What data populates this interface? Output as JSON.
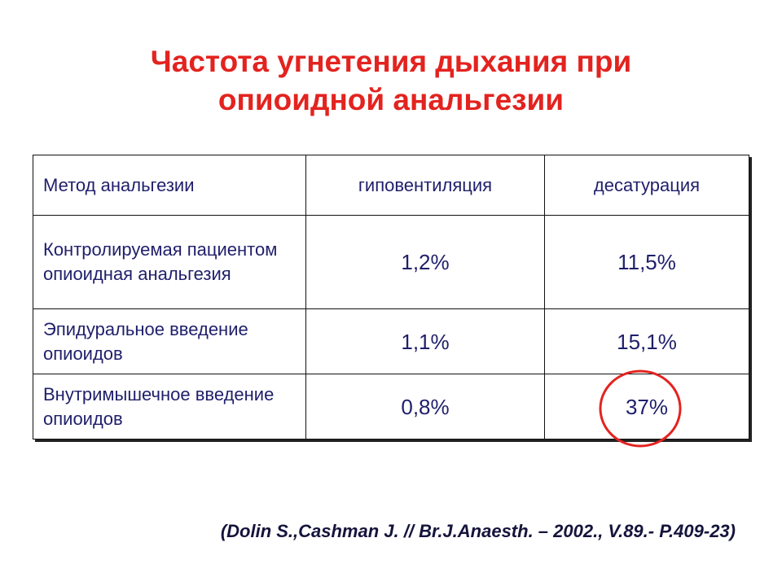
{
  "header": {
    "title_lines": [
      "Частота угнетения дыхания при",
      "опиоидной анальгезии"
    ]
  },
  "table": {
    "columns": [
      "Метод анальгезии",
      "гиповентиляция",
      "десатурация"
    ],
    "rows": [
      [
        "Контролируемая пациентом опиоидная анальгезия",
        "1,2%",
        "11,5%"
      ],
      [
        "Эпидуральное введение опиоидов",
        "1,1%",
        "15,1%"
      ],
      [
        "Внутримышечное введение опиоидов",
        "0,8%",
        "37%"
      ]
    ]
  },
  "citation": "(Dolin S.,Cashman J. // Br.J.Anaesth. – 2002., V.89.- P.409-23)"
}
